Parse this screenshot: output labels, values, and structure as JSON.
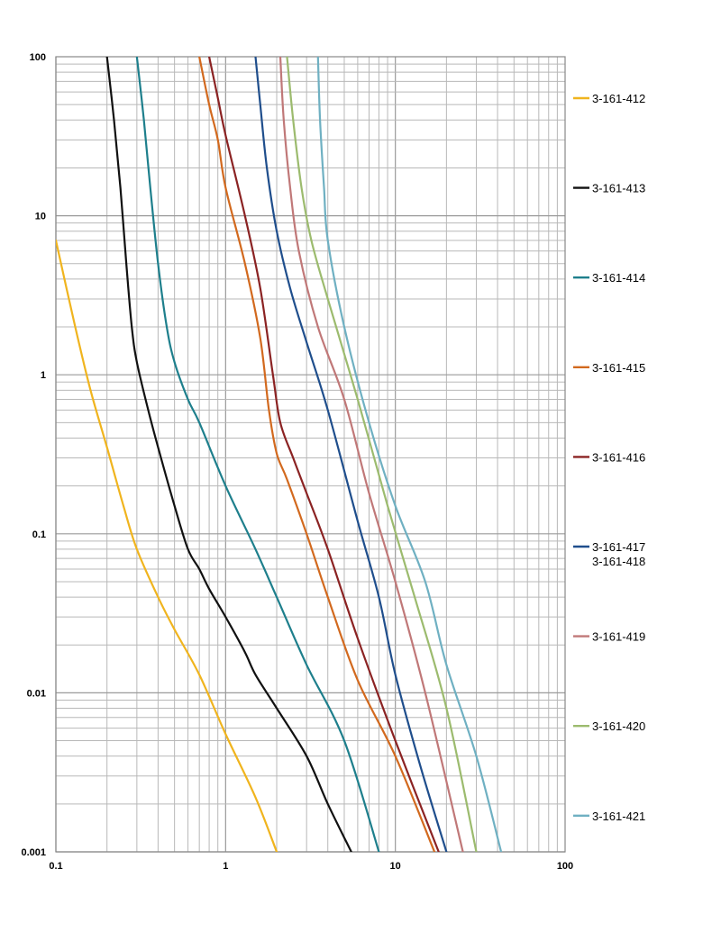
{
  "chart_data": {
    "type": "line",
    "title": "",
    "xlabel": "",
    "ylabel": "",
    "x_scale": "log",
    "y_scale": "log",
    "xlim": [
      0.1,
      100
    ],
    "ylim": [
      0.001,
      100
    ],
    "grid": true,
    "legend_position": "right",
    "x_ticks": [
      {
        "value": 0.1,
        "label": "0.1"
      },
      {
        "value": 1,
        "label": "1"
      },
      {
        "value": 10,
        "label": "10"
      },
      {
        "value": 100,
        "label": "100"
      }
    ],
    "y_ticks": [
      {
        "value": 0.001,
        "label": "0.001"
      },
      {
        "value": 0.01,
        "label": "0.01"
      },
      {
        "value": 0.1,
        "label": "0.1"
      },
      {
        "value": 1,
        "label": "1"
      },
      {
        "value": 10,
        "label": "10"
      },
      {
        "value": 100,
        "label": "100"
      }
    ],
    "series": [
      {
        "name": "3-161-412",
        "color": "#f0b41e",
        "points": [
          [
            0.1,
            7
          ],
          [
            0.13,
            2
          ],
          [
            0.16,
            0.8
          ],
          [
            0.2,
            0.35
          ],
          [
            0.25,
            0.15
          ],
          [
            0.3,
            0.08
          ],
          [
            0.4,
            0.04
          ],
          [
            0.5,
            0.025
          ],
          [
            0.7,
            0.013
          ],
          [
            1,
            0.0055
          ],
          [
            1.5,
            0.0022
          ],
          [
            2,
            0.001
          ]
        ]
      },
      {
        "name": "3-161-413",
        "color": "#111111",
        "points": [
          [
            0.2,
            100
          ],
          [
            0.22,
            40
          ],
          [
            0.24,
            15
          ],
          [
            0.26,
            5
          ],
          [
            0.28,
            2
          ],
          [
            0.3,
            1.2
          ],
          [
            0.35,
            0.6
          ],
          [
            0.4,
            0.35
          ],
          [
            0.5,
            0.15
          ],
          [
            0.6,
            0.08
          ],
          [
            0.7,
            0.06
          ],
          [
            0.8,
            0.045
          ],
          [
            1,
            0.03
          ],
          [
            1.3,
            0.018
          ],
          [
            1.5,
            0.013
          ],
          [
            2,
            0.008
          ],
          [
            3,
            0.004
          ],
          [
            4,
            0.002
          ],
          [
            5.5,
            0.001
          ]
        ]
      },
      {
        "name": "3-161-414",
        "color": "#1e7f8c",
        "points": [
          [
            0.3,
            100
          ],
          [
            0.33,
            40
          ],
          [
            0.36,
            15
          ],
          [
            0.4,
            5
          ],
          [
            0.45,
            2
          ],
          [
            0.5,
            1.2
          ],
          [
            0.6,
            0.7
          ],
          [
            0.7,
            0.5
          ],
          [
            1,
            0.2
          ],
          [
            1.5,
            0.08
          ],
          [
            2,
            0.04
          ],
          [
            3,
            0.015
          ],
          [
            5,
            0.005
          ],
          [
            8,
            0.001
          ]
        ]
      },
      {
        "name": "3-161-415",
        "color": "#d2691e",
        "points": [
          [
            0.7,
            100
          ],
          [
            0.8,
            50
          ],
          [
            0.9,
            30
          ],
          [
            1,
            15
          ],
          [
            1.3,
            5
          ],
          [
            1.6,
            1.7
          ],
          [
            1.8,
            0.6
          ],
          [
            2,
            0.32
          ],
          [
            2.3,
            0.22
          ],
          [
            3,
            0.1
          ],
          [
            4,
            0.04
          ],
          [
            6,
            0.012
          ],
          [
            10,
            0.004
          ],
          [
            17,
            0.001
          ]
        ]
      },
      {
        "name": "3-161-416",
        "color": "#8b2323",
        "points": [
          [
            0.8,
            100
          ],
          [
            0.9,
            55
          ],
          [
            1,
            32
          ],
          [
            1.3,
            10
          ],
          [
            1.6,
            3.5
          ],
          [
            1.9,
            1
          ],
          [
            2.1,
            0.5
          ],
          [
            2.5,
            0.3
          ],
          [
            3,
            0.18
          ],
          [
            4,
            0.08
          ],
          [
            6,
            0.022
          ],
          [
            10,
            0.005
          ],
          [
            18,
            0.001
          ]
        ]
      },
      {
        "name": "3-161-417\n3-161-418",
        "color": "#1f4e8c",
        "points": [
          [
            1.5,
            100
          ],
          [
            1.6,
            50
          ],
          [
            1.75,
            20
          ],
          [
            2,
            8
          ],
          [
            2.4,
            3.5
          ],
          [
            3,
            1.6
          ],
          [
            4,
            0.6
          ],
          [
            6,
            0.12
          ],
          [
            8,
            0.04
          ],
          [
            10,
            0.013
          ],
          [
            14,
            0.0035
          ],
          [
            20,
            0.001
          ]
        ]
      },
      {
        "name": "3-161-419",
        "color": "#c07878",
        "points": [
          [
            2.1,
            100
          ],
          [
            2.2,
            40
          ],
          [
            2.4,
            15
          ],
          [
            2.7,
            6
          ],
          [
            3.5,
            2
          ],
          [
            5,
            0.7
          ],
          [
            7,
            0.18
          ],
          [
            10,
            0.05
          ],
          [
            15,
            0.01
          ],
          [
            25,
            0.001
          ]
        ]
      },
      {
        "name": "3-161-420",
        "color": "#9cbb6e",
        "points": [
          [
            2.3,
            100
          ],
          [
            2.5,
            40
          ],
          [
            2.8,
            15
          ],
          [
            3.2,
            7
          ],
          [
            4,
            3
          ],
          [
            6,
            0.7
          ],
          [
            9,
            0.15
          ],
          [
            13,
            0.04
          ],
          [
            20,
            0.008
          ],
          [
            30,
            0.001
          ]
        ]
      },
      {
        "name": "3-161-421",
        "color": "#6fb0c2",
        "points": [
          [
            3.5,
            100
          ],
          [
            3.6,
            40
          ],
          [
            3.8,
            15
          ],
          [
            4,
            7
          ],
          [
            5,
            2
          ],
          [
            7,
            0.5
          ],
          [
            10,
            0.15
          ],
          [
            15,
            0.05
          ],
          [
            20,
            0.015
          ],
          [
            30,
            0.004
          ],
          [
            42,
            0.001
          ]
        ]
      }
    ]
  }
}
